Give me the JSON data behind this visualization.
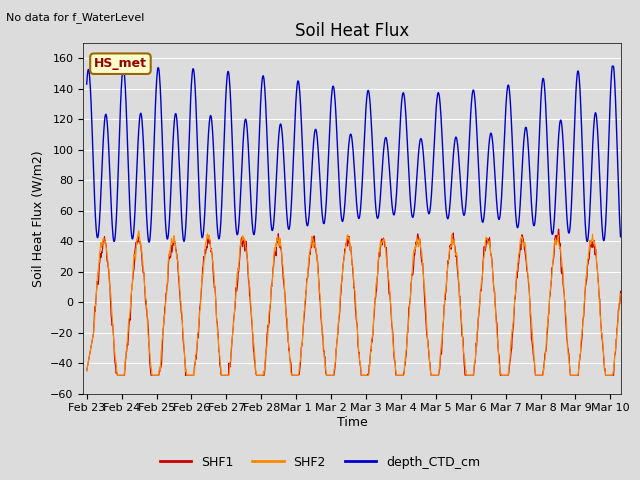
{
  "title": "Soil Heat Flux",
  "top_left_text": "No data for f_WaterLevel",
  "ylabel": "Soil Heat Flux (W/m2)",
  "xlabel": "Time",
  "ylim": [
    -60,
    170
  ],
  "yticks": [
    -60,
    -40,
    -20,
    0,
    20,
    40,
    60,
    80,
    100,
    120,
    140,
    160
  ],
  "xtick_labels": [
    "Feb 23",
    "Feb 24",
    "Feb 25",
    "Feb 26",
    "Feb 27",
    "Feb 28",
    "Mar 1",
    "Mar 2",
    "Mar 3",
    "Mar 4",
    "Mar 5",
    "Mar 6",
    "Mar 7",
    "Mar 8",
    "Mar 9",
    "Mar 10"
  ],
  "legend_entries": [
    "SHF1",
    "SHF2",
    "depth_CTD_cm"
  ],
  "legend_colors": [
    "#cc0000",
    "#ff8800",
    "#0000cc"
  ],
  "annotation_box": "HS_met",
  "annotation_box_bg": "#ffffcc",
  "annotation_box_border": "#996600",
  "annotation_text_color": "#990000",
  "background_color": "#dcdcdc",
  "plot_bg_color": "#dcdcdc",
  "shf1_color": "#cc0000",
  "shf2_color": "#ff8800",
  "depth_color": "#0000cc",
  "title_fontsize": 12,
  "axis_label_fontsize": 9,
  "tick_fontsize": 8
}
